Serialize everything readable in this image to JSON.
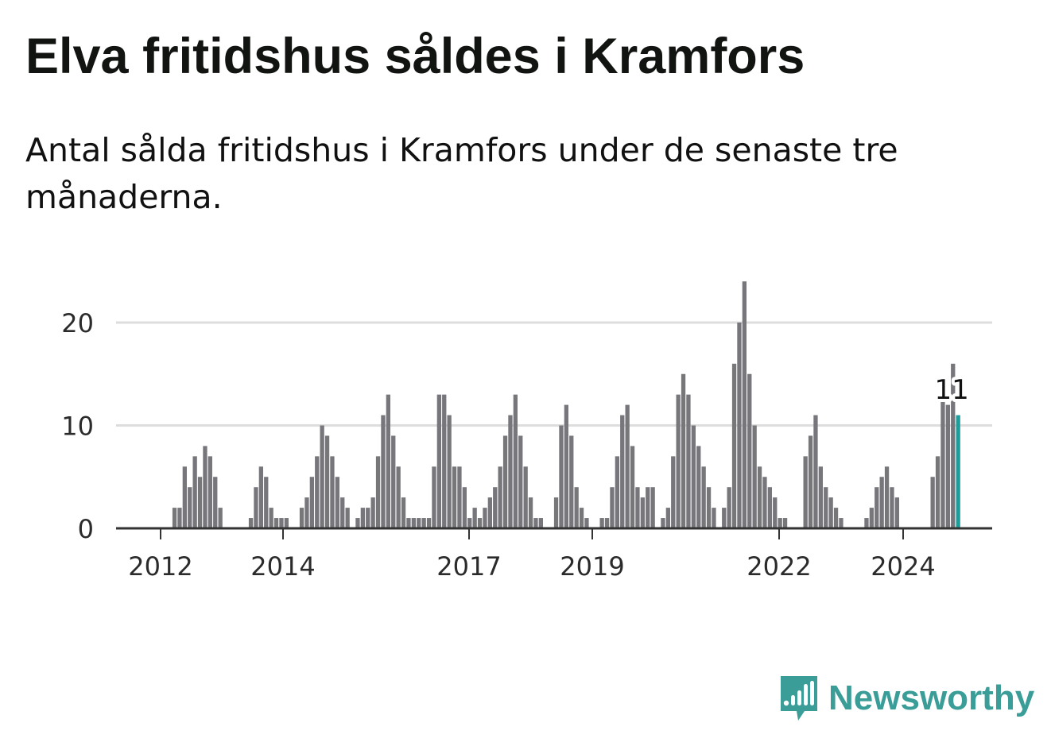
{
  "title": "Elva fritidshus såldes i Kramfors",
  "subtitle": "Antal sålda fritidshus i Kramfors under de senaste tre månaderna.",
  "brand": {
    "name": "Newsworthy",
    "icon": "newsworthy-logo-icon",
    "color": "#3a9d98"
  },
  "colors": {
    "bar": "#77767b",
    "highlight": "#1b9e9c",
    "grid": "#dddddd",
    "axis": "#333333"
  },
  "chart_data": {
    "type": "bar",
    "x_tick_labels": [
      "2012",
      "2014",
      "2017",
      "2019",
      "2022",
      "2024"
    ],
    "y_tick_labels": [
      "0",
      "10",
      "20"
    ],
    "ylim": [
      0,
      25
    ],
    "grid": true,
    "values": [
      0,
      0,
      0,
      0,
      0,
      0,
      0,
      0,
      0,
      0,
      0,
      2,
      2,
      6,
      4,
      7,
      5,
      8,
      7,
      5,
      2,
      0,
      0,
      0,
      0,
      0,
      1,
      4,
      6,
      5,
      2,
      1,
      1,
      1,
      0,
      0,
      2,
      3,
      5,
      7,
      10,
      9,
      7,
      5,
      3,
      2,
      0,
      1,
      2,
      2,
      3,
      7,
      11,
      13,
      9,
      6,
      3,
      1,
      1,
      1,
      1,
      1,
      6,
      13,
      13,
      11,
      6,
      6,
      4,
      1,
      2,
      1,
      2,
      3,
      4,
      6,
      9,
      11,
      13,
      9,
      6,
      3,
      1,
      1,
      0,
      0,
      3,
      10,
      12,
      9,
      4,
      2,
      1,
      0,
      0,
      1,
      1,
      4,
      7,
      11,
      12,
      8,
      4,
      3,
      4,
      4,
      0,
      1,
      2,
      7,
      13,
      15,
      13,
      10,
      8,
      6,
      4,
      2,
      0,
      2,
      4,
      16,
      20,
      24,
      15,
      10,
      6,
      5,
      4,
      3,
      1,
      1,
      0,
      0,
      0,
      7,
      9,
      11,
      6,
      4,
      3,
      2,
      1,
      0,
      0,
      0,
      0,
      1,
      2,
      4,
      5,
      6,
      4,
      3,
      0,
      0,
      0,
      0,
      0,
      0,
      5,
      7,
      13,
      12,
      16,
      11
    ],
    "highlight": {
      "value": 11,
      "label": "11"
    }
  }
}
